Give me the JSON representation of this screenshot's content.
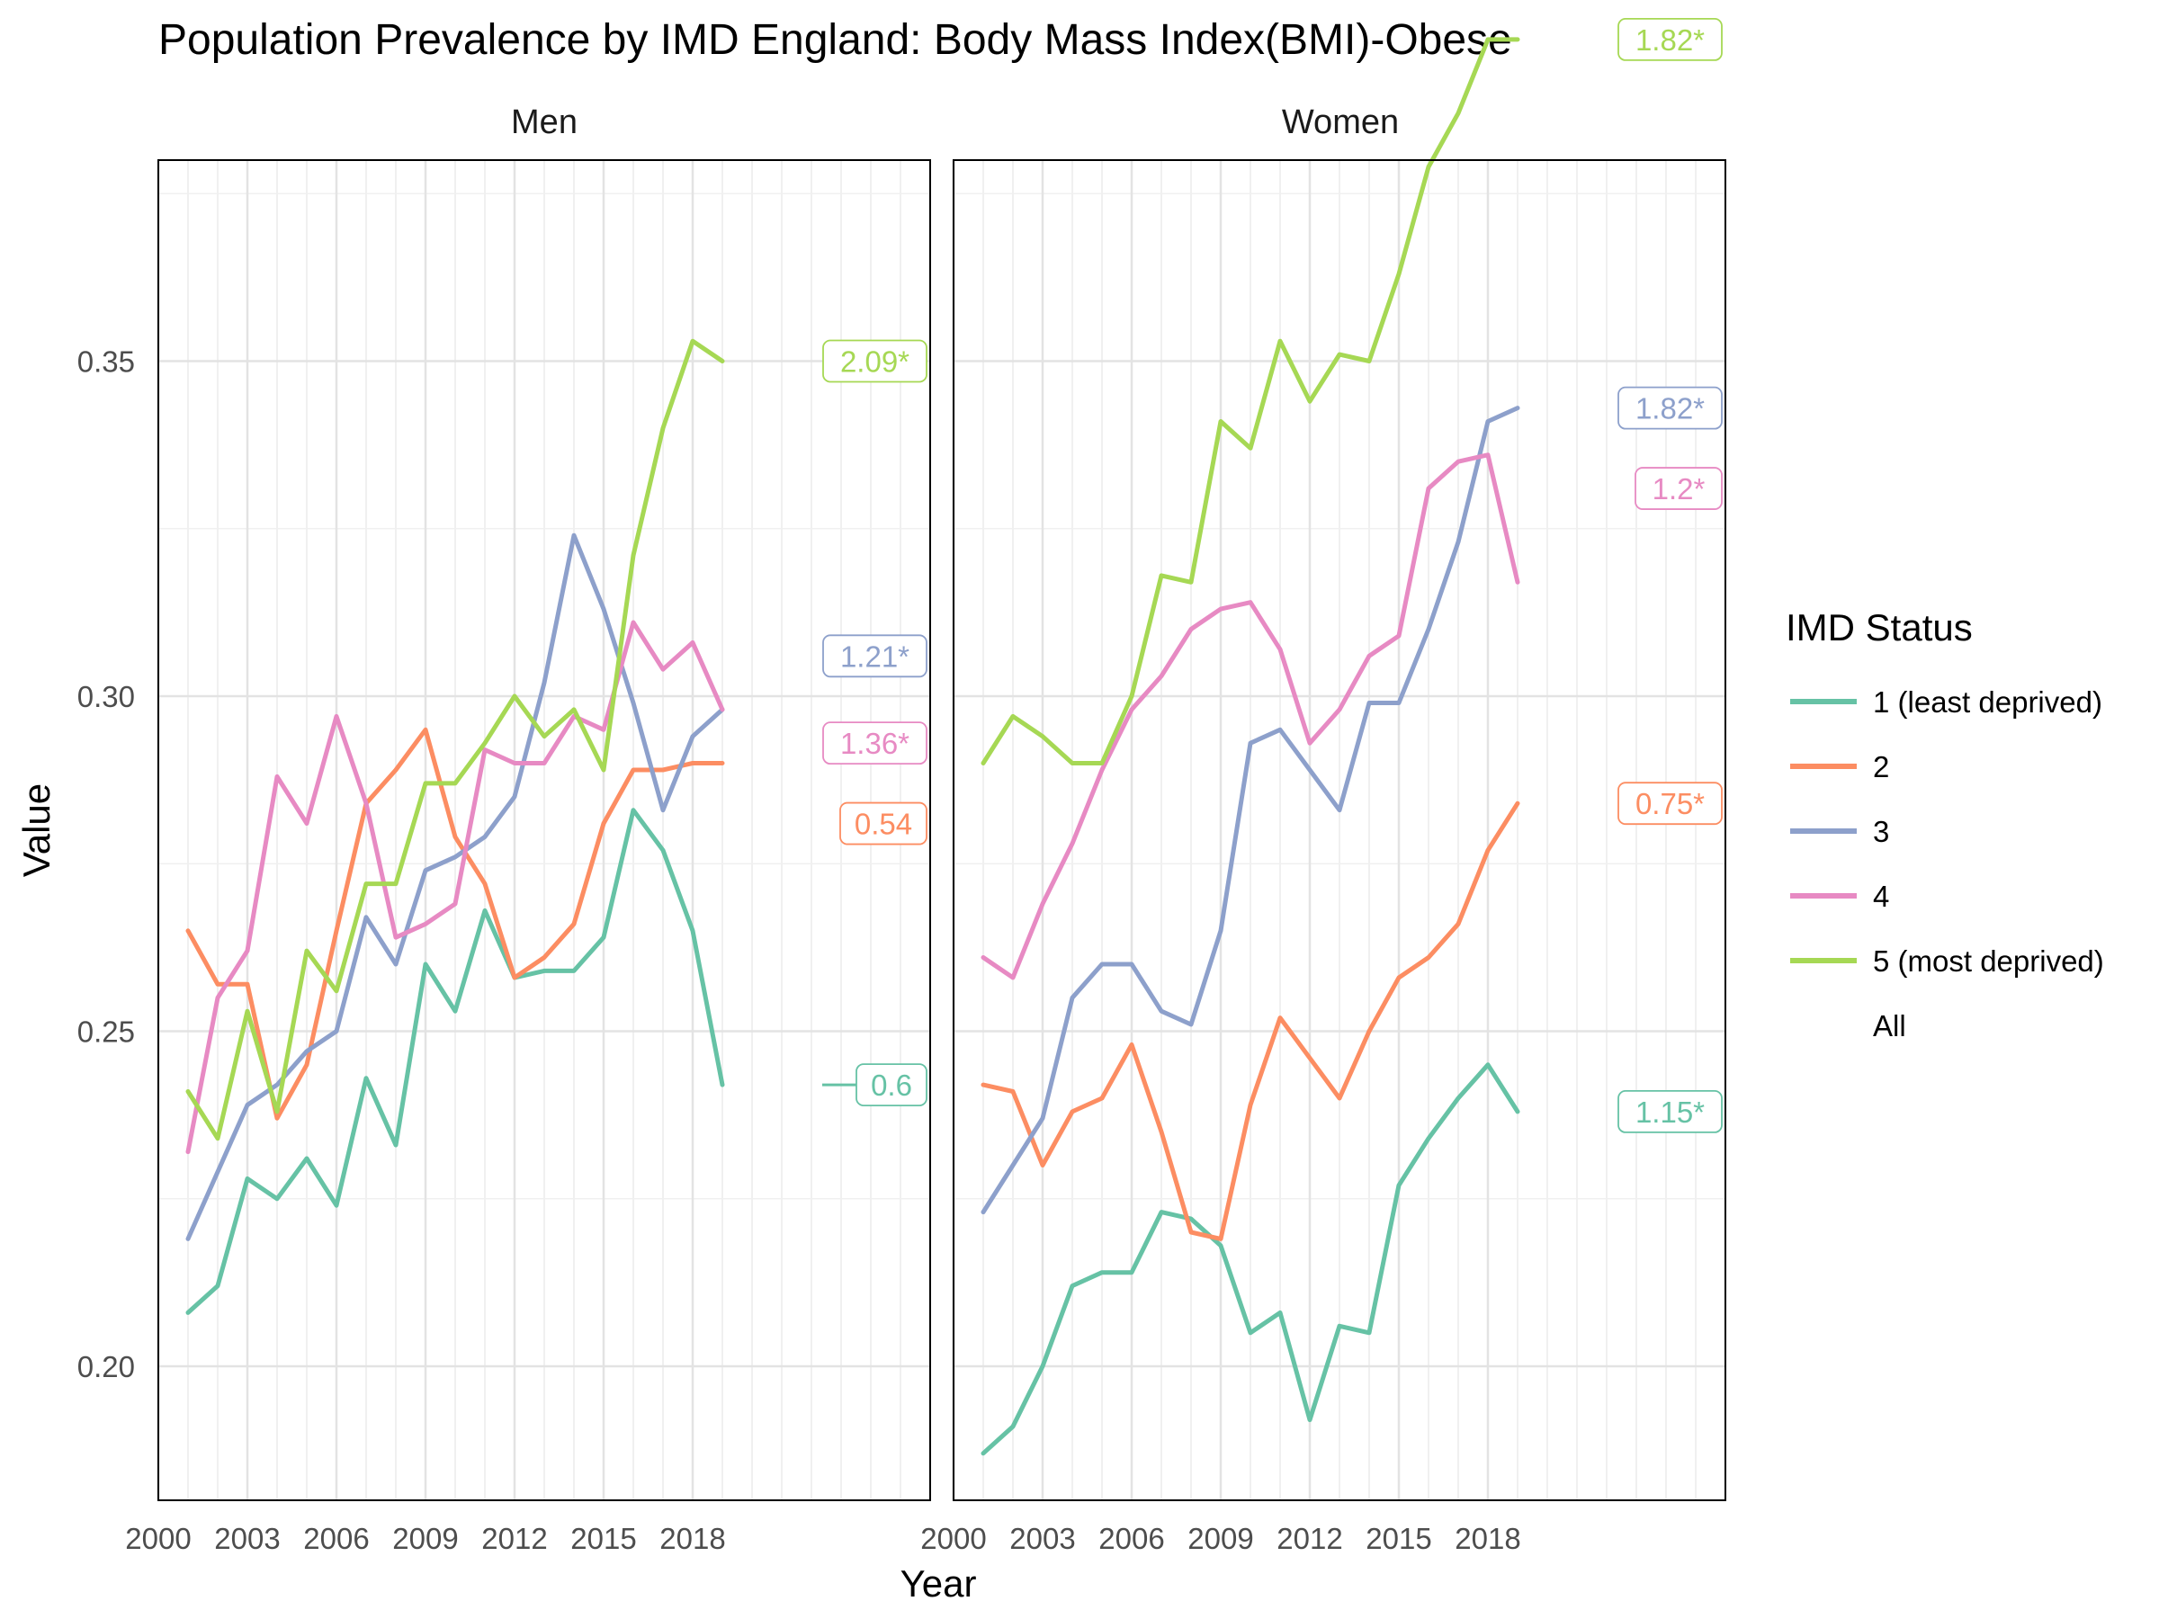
{
  "chart_data": {
    "type": "line",
    "title": "Population Prevalence by IMD England: Body Mass Index(BMI)-Obese",
    "xlabel": "Year",
    "ylabel": "Value",
    "xlim": [
      2000,
      2026
    ],
    "ylim": [
      0.18,
      0.38
    ],
    "x_ticks": [
      "2000",
      "2003",
      "2006",
      "2009",
      "2012",
      "2015",
      "2018"
    ],
    "y_ticks": [
      "0.20",
      "0.25",
      "0.30",
      "0.35"
    ],
    "x_tick_values": [
      2000,
      2003,
      2006,
      2009,
      2012,
      2015,
      2018
    ],
    "y_tick_values": [
      0.2,
      0.25,
      0.3,
      0.35
    ],
    "years": [
      2001,
      2002,
      2003,
      2004,
      2005,
      2006,
      2007,
      2008,
      2009,
      2010,
      2011,
      2012,
      2013,
      2014,
      2015,
      2016,
      2017,
      2018,
      2019
    ],
    "legend": {
      "title": "IMD Status",
      "placement": "right",
      "items": [
        {
          "key": "1",
          "label": "1 (least deprived)",
          "color": "#66C2A5"
        },
        {
          "key": "2",
          "label": "2",
          "color": "#FC8D62"
        },
        {
          "key": "3",
          "label": "3",
          "color": "#8DA0CB"
        },
        {
          "key": "4",
          "label": "4",
          "color": "#E78AC3"
        },
        {
          "key": "5",
          "label": "5 (most deprived)",
          "color": "#A6D854"
        },
        {
          "key": "All",
          "label": "All",
          "color": ""
        }
      ]
    },
    "panels": [
      {
        "label": "Men",
        "series": [
          {
            "key": "1",
            "values": [
              0.208,
              0.212,
              0.228,
              0.225,
              0.231,
              0.224,
              0.243,
              0.233,
              0.26,
              0.253,
              0.268,
              0.258,
              0.259,
              0.259,
              0.264,
              0.283,
              0.277,
              0.265,
              0.242
            ],
            "annotation": "0.6",
            "annotation_y": 0.242,
            "annotation_line": true
          },
          {
            "key": "2",
            "values": [
              0.265,
              0.257,
              0.257,
              0.237,
              0.245,
              0.265,
              0.284,
              0.289,
              0.295,
              0.279,
              0.272,
              0.258,
              0.261,
              0.266,
              0.281,
              0.289,
              0.289,
              0.29,
              0.29
            ],
            "annotation": "0.54",
            "annotation_y": 0.281,
            "annotation_line": false
          },
          {
            "key": "3",
            "values": [
              0.219,
              0.229,
              0.239,
              0.242,
              0.247,
              0.25,
              0.267,
              0.26,
              0.274,
              0.276,
              0.279,
              0.285,
              0.302,
              0.324,
              0.313,
              0.299,
              0.283,
              0.294,
              0.298
            ],
            "annotation": "1.21*",
            "annotation_y": 0.306,
            "annotation_line": false
          },
          {
            "key": "4",
            "values": [
              0.232,
              0.255,
              0.262,
              0.288,
              0.281,
              0.297,
              0.284,
              0.264,
              0.266,
              0.269,
              0.292,
              0.29,
              0.29,
              0.297,
              0.295,
              0.311,
              0.304,
              0.308,
              0.298
            ],
            "annotation": "1.36*",
            "annotation_y": 0.293,
            "annotation_line": false
          },
          {
            "key": "5",
            "values": [
              0.241,
              0.234,
              0.253,
              0.238,
              0.262,
              0.256,
              0.272,
              0.272,
              0.287,
              0.287,
              0.293,
              0.3,
              0.294,
              0.298,
              0.289,
              0.321,
              0.34,
              0.353,
              0.35
            ],
            "annotation": "2.09*",
            "annotation_y": 0.35,
            "annotation_line": false
          }
        ]
      },
      {
        "label": "Women",
        "series": [
          {
            "key": "1",
            "values": [
              0.187,
              0.191,
              0.2,
              0.212,
              0.214,
              0.214,
              0.223,
              0.222,
              0.218,
              0.205,
              0.208,
              0.192,
              0.206,
              0.205,
              0.227,
              0.234,
              0.24,
              0.245,
              0.238
            ],
            "annotation": "1.15*",
            "annotation_y": 0.238,
            "annotation_line": false
          },
          {
            "key": "2",
            "values": [
              0.242,
              0.241,
              0.23,
              0.238,
              0.24,
              0.248,
              0.235,
              0.22,
              0.219,
              0.239,
              0.252,
              0.246,
              0.24,
              0.25,
              0.258,
              0.261,
              0.266,
              0.277,
              0.284
            ],
            "annotation": "0.75*",
            "annotation_y": 0.284,
            "annotation_line": false
          },
          {
            "key": "3",
            "values": [
              0.223,
              0.23,
              0.237,
              0.255,
              0.26,
              0.26,
              0.253,
              0.251,
              0.265,
              0.293,
              0.295,
              0.289,
              0.283,
              0.299,
              0.299,
              0.31,
              0.323,
              0.341,
              0.343
            ],
            "annotation": "1.82*",
            "annotation_y": 0.343,
            "annotation_line": false
          },
          {
            "key": "4",
            "values": [
              0.261,
              0.258,
              0.269,
              0.278,
              0.289,
              0.298,
              0.303,
              0.31,
              0.313,
              0.314,
              0.307,
              0.293,
              0.298,
              0.306,
              0.309,
              0.331,
              0.335,
              0.336,
              0.317
            ],
            "annotation": "1.2*",
            "annotation_y": 0.331,
            "annotation_line": false
          },
          {
            "key": "5",
            "values": [
              0.29,
              0.297,
              0.294,
              0.29,
              0.29,
              0.3,
              0.318,
              0.317,
              0.341,
              0.337,
              0.353,
              0.344,
              0.351,
              0.35,
              0.363,
              0.379,
              0.387,
              0.398,
              0.398
            ],
            "annotation": "1.82*",
            "annotation_y": 0.398,
            "annotation_line": false
          }
        ]
      }
    ]
  }
}
